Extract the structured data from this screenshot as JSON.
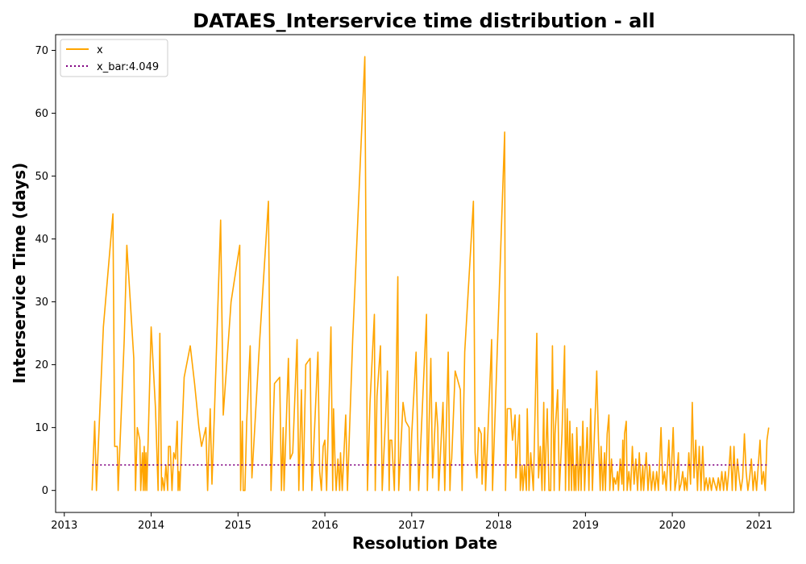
{
  "chart_data": {
    "type": "line",
    "title": "DATAES_Interservice time distribution - all",
    "xlabel": "Resolution Date",
    "ylabel": "Interservice Time (days)",
    "xlim": [
      2012.9,
      2021.4
    ],
    "ylim": [
      -3.5,
      72.5
    ],
    "x_ticks": [
      2013,
      2014,
      2015,
      2016,
      2017,
      2018,
      2019,
      2020,
      2021
    ],
    "x_tick_labels": [
      "2013",
      "2014",
      "2015",
      "2016",
      "2017",
      "2018",
      "2019",
      "2020",
      "2021"
    ],
    "y_ticks": [
      0,
      10,
      20,
      30,
      40,
      50,
      60,
      70
    ],
    "y_tick_labels": [
      "0",
      "10",
      "20",
      "30",
      "40",
      "50",
      "60",
      "70"
    ],
    "grid": false,
    "legend_position": "top-left",
    "series": [
      {
        "name": "x",
        "color": "#ffa500",
        "style": "solid",
        "points": [
          [
            2013.32,
            0
          ],
          [
            2013.35,
            11
          ],
          [
            2013.37,
            0
          ],
          [
            2013.45,
            26
          ],
          [
            2013.56,
            44
          ],
          [
            2013.58,
            7
          ],
          [
            2013.61,
            7
          ],
          [
            2013.62,
            0
          ],
          [
            2013.69,
            24
          ],
          [
            2013.72,
            39
          ],
          [
            2013.8,
            21
          ],
          [
            2013.82,
            0
          ],
          [
            2013.84,
            10
          ],
          [
            2013.87,
            8
          ],
          [
            2013.88,
            0
          ],
          [
            2013.9,
            6
          ],
          [
            2013.91,
            0
          ],
          [
            2013.92,
            7
          ],
          [
            2013.93,
            0
          ],
          [
            2013.94,
            6
          ],
          [
            2013.95,
            0
          ],
          [
            2014.0,
            26
          ],
          [
            2014.05,
            13
          ],
          [
            2014.08,
            0
          ],
          [
            2014.1,
            25
          ],
          [
            2014.12,
            0
          ],
          [
            2014.13,
            2
          ],
          [
            2014.15,
            0
          ],
          [
            2014.17,
            4
          ],
          [
            2014.19,
            0
          ],
          [
            2014.2,
            7
          ],
          [
            2014.22,
            7
          ],
          [
            2014.24,
            0
          ],
          [
            2014.26,
            6
          ],
          [
            2014.28,
            5
          ],
          [
            2014.3,
            11
          ],
          [
            2014.31,
            0
          ],
          [
            2014.32,
            3
          ],
          [
            2014.33,
            0
          ],
          [
            2014.38,
            18
          ],
          [
            2014.45,
            23
          ],
          [
            2014.5,
            17
          ],
          [
            2014.55,
            10
          ],
          [
            2014.58,
            7
          ],
          [
            2014.63,
            10
          ],
          [
            2014.65,
            0
          ],
          [
            2014.68,
            13
          ],
          [
            2014.7,
            1
          ],
          [
            2014.73,
            13
          ],
          [
            2014.8,
            43
          ],
          [
            2014.83,
            12
          ],
          [
            2014.92,
            30
          ],
          [
            2015.02,
            39
          ],
          [
            2015.03,
            0
          ],
          [
            2015.05,
            11
          ],
          [
            2015.06,
            0
          ],
          [
            2015.08,
            0
          ],
          [
            2015.1,
            11
          ],
          [
            2015.14,
            23
          ],
          [
            2015.16,
            2
          ],
          [
            2015.25,
            24
          ],
          [
            2015.3,
            35
          ],
          [
            2015.35,
            46
          ],
          [
            2015.38,
            0
          ],
          [
            2015.42,
            17
          ],
          [
            2015.48,
            18
          ],
          [
            2015.5,
            0
          ],
          [
            2015.52,
            10
          ],
          [
            2015.53,
            0
          ],
          [
            2015.58,
            21
          ],
          [
            2015.6,
            5
          ],
          [
            2015.63,
            6
          ],
          [
            2015.68,
            24
          ],
          [
            2015.7,
            0
          ],
          [
            2015.73,
            16
          ],
          [
            2015.75,
            0
          ],
          [
            2015.78,
            20
          ],
          [
            2015.83,
            21
          ],
          [
            2015.85,
            0
          ],
          [
            2015.92,
            22
          ],
          [
            2015.94,
            3
          ],
          [
            2015.96,
            0
          ],
          [
            2015.98,
            7
          ],
          [
            2016.0,
            8
          ],
          [
            2016.02,
            0
          ],
          [
            2016.07,
            26
          ],
          [
            2016.09,
            0
          ],
          [
            2016.1,
            13
          ],
          [
            2016.12,
            3
          ],
          [
            2016.13,
            0
          ],
          [
            2016.15,
            5
          ],
          [
            2016.17,
            0
          ],
          [
            2016.18,
            6
          ],
          [
            2016.2,
            0
          ],
          [
            2016.24,
            12
          ],
          [
            2016.26,
            0
          ],
          [
            2016.32,
            24
          ],
          [
            2016.46,
            69
          ],
          [
            2016.49,
            0
          ],
          [
            2016.52,
            14
          ],
          [
            2016.57,
            28
          ],
          [
            2016.58,
            0
          ],
          [
            2016.6,
            15
          ],
          [
            2016.64,
            23
          ],
          [
            2016.66,
            0
          ],
          [
            2016.7,
            12
          ],
          [
            2016.72,
            19
          ],
          [
            2016.74,
            0
          ],
          [
            2016.75,
            8
          ],
          [
            2016.77,
            8
          ],
          [
            2016.8,
            0
          ],
          [
            2016.84,
            34
          ],
          [
            2016.85,
            0
          ],
          [
            2016.9,
            14
          ],
          [
            2016.93,
            11
          ],
          [
            2016.97,
            10
          ],
          [
            2016.98,
            0
          ],
          [
            2017.0,
            9
          ],
          [
            2017.05,
            22
          ],
          [
            2017.08,
            0
          ],
          [
            2017.17,
            28
          ],
          [
            2017.18,
            0
          ],
          [
            2017.22,
            21
          ],
          [
            2017.24,
            2
          ],
          [
            2017.28,
            14
          ],
          [
            2017.3,
            10
          ],
          [
            2017.31,
            0
          ],
          [
            2017.36,
            14
          ],
          [
            2017.38,
            0
          ],
          [
            2017.42,
            22
          ],
          [
            2017.44,
            0
          ],
          [
            2017.45,
            4
          ],
          [
            2017.46,
            5
          ],
          [
            2017.5,
            19
          ],
          [
            2017.56,
            16
          ],
          [
            2017.58,
            0
          ],
          [
            2017.61,
            22
          ],
          [
            2017.71,
            46
          ],
          [
            2017.73,
            6
          ],
          [
            2017.75,
            2
          ],
          [
            2017.77,
            10
          ],
          [
            2017.8,
            9
          ],
          [
            2017.81,
            1
          ],
          [
            2017.84,
            10
          ],
          [
            2017.85,
            0
          ],
          [
            2017.92,
            24
          ],
          [
            2017.93,
            0
          ],
          [
            2018.07,
            57
          ],
          [
            2018.08,
            0
          ],
          [
            2018.1,
            13
          ],
          [
            2018.14,
            13
          ],
          [
            2018.16,
            8
          ],
          [
            2018.19,
            12
          ],
          [
            2018.2,
            2
          ],
          [
            2018.24,
            12
          ],
          [
            2018.25,
            0
          ],
          [
            2018.27,
            4
          ],
          [
            2018.28,
            0
          ],
          [
            2018.3,
            4
          ],
          [
            2018.32,
            0
          ],
          [
            2018.33,
            13
          ],
          [
            2018.35,
            0
          ],
          [
            2018.37,
            6
          ],
          [
            2018.4,
            0
          ],
          [
            2018.44,
            25
          ],
          [
            2018.46,
            2
          ],
          [
            2018.48,
            7
          ],
          [
            2018.5,
            0
          ],
          [
            2018.52,
            14
          ],
          [
            2018.53,
            0
          ],
          [
            2018.56,
            13
          ],
          [
            2018.58,
            0
          ],
          [
            2018.6,
            0
          ],
          [
            2018.62,
            23
          ],
          [
            2018.64,
            0
          ],
          [
            2018.65,
            9
          ],
          [
            2018.68,
            16
          ],
          [
            2018.7,
            0
          ],
          [
            2018.73,
            9
          ],
          [
            2018.76,
            23
          ],
          [
            2018.77,
            0
          ],
          [
            2018.79,
            13
          ],
          [
            2018.81,
            0
          ],
          [
            2018.82,
            11
          ],
          [
            2018.84,
            0
          ],
          [
            2018.85,
            9
          ],
          [
            2018.87,
            0
          ],
          [
            2018.88,
            4
          ],
          [
            2018.89,
            0
          ],
          [
            2018.9,
            10
          ],
          [
            2018.92,
            0
          ],
          [
            2018.94,
            7
          ],
          [
            2018.95,
            0
          ],
          [
            2018.97,
            11
          ],
          [
            2018.99,
            0
          ],
          [
            2019.02,
            10
          ],
          [
            2019.04,
            0
          ],
          [
            2019.06,
            13
          ],
          [
            2019.08,
            0
          ],
          [
            2019.13,
            19
          ],
          [
            2019.15,
            8
          ],
          [
            2019.17,
            0
          ],
          [
            2019.18,
            7
          ],
          [
            2019.2,
            0
          ],
          [
            2019.22,
            6
          ],
          [
            2019.23,
            0
          ],
          [
            2019.25,
            9
          ],
          [
            2019.27,
            12
          ],
          [
            2019.28,
            0
          ],
          [
            2019.3,
            5
          ],
          [
            2019.32,
            0
          ],
          [
            2019.33,
            2
          ],
          [
            2019.35,
            1
          ],
          [
            2019.37,
            3
          ],
          [
            2019.38,
            0
          ],
          [
            2019.4,
            5
          ],
          [
            2019.42,
            1
          ],
          [
            2019.43,
            8
          ],
          [
            2019.44,
            0
          ],
          [
            2019.45,
            9
          ],
          [
            2019.47,
            11
          ],
          [
            2019.48,
            0
          ],
          [
            2019.5,
            3
          ],
          [
            2019.52,
            0
          ],
          [
            2019.54,
            7
          ],
          [
            2019.56,
            1
          ],
          [
            2019.58,
            5
          ],
          [
            2019.6,
            0
          ],
          [
            2019.62,
            6
          ],
          [
            2019.64,
            0
          ],
          [
            2019.66,
            4
          ],
          [
            2019.67,
            0
          ],
          [
            2019.7,
            6
          ],
          [
            2019.72,
            0
          ],
          [
            2019.74,
            4
          ],
          [
            2019.76,
            0
          ],
          [
            2019.78,
            3
          ],
          [
            2019.8,
            0
          ],
          [
            2019.82,
            3
          ],
          [
            2019.84,
            0
          ],
          [
            2019.87,
            10
          ],
          [
            2019.89,
            1
          ],
          [
            2019.91,
            3
          ],
          [
            2019.93,
            0
          ],
          [
            2019.96,
            8
          ],
          [
            2019.98,
            0
          ],
          [
            2020.01,
            10
          ],
          [
            2020.03,
            0
          ],
          [
            2020.05,
            2
          ],
          [
            2020.07,
            6
          ],
          [
            2020.08,
            0
          ],
          [
            2020.1,
            1
          ],
          [
            2020.12,
            3
          ],
          [
            2020.14,
            0
          ],
          [
            2020.15,
            2
          ],
          [
            2020.17,
            0
          ],
          [
            2020.19,
            6
          ],
          [
            2020.21,
            1
          ],
          [
            2020.23,
            14
          ],
          [
            2020.25,
            2
          ],
          [
            2020.27,
            8
          ],
          [
            2020.29,
            0
          ],
          [
            2020.31,
            7
          ],
          [
            2020.33,
            0
          ],
          [
            2020.35,
            7
          ],
          [
            2020.37,
            0
          ],
          [
            2020.39,
            2
          ],
          [
            2020.41,
            0
          ],
          [
            2020.43,
            2
          ],
          [
            2020.45,
            0
          ],
          [
            2020.47,
            2
          ],
          [
            2020.49,
            1
          ],
          [
            2020.51,
            0
          ],
          [
            2020.53,
            2
          ],
          [
            2020.55,
            0
          ],
          [
            2020.57,
            3
          ],
          [
            2020.59,
            0
          ],
          [
            2020.61,
            3
          ],
          [
            2020.63,
            0
          ],
          [
            2020.65,
            3
          ],
          [
            2020.67,
            7
          ],
          [
            2020.69,
            0
          ],
          [
            2020.71,
            7
          ],
          [
            2020.73,
            0
          ],
          [
            2020.75,
            5
          ],
          [
            2020.77,
            2
          ],
          [
            2020.79,
            0
          ],
          [
            2020.81,
            2
          ],
          [
            2020.83,
            9
          ],
          [
            2020.85,
            3
          ],
          [
            2020.87,
            0
          ],
          [
            2020.89,
            2
          ],
          [
            2020.91,
            5
          ],
          [
            2020.93,
            0
          ],
          [
            2020.95,
            3
          ],
          [
            2020.97,
            0
          ],
          [
            2020.99,
            4
          ],
          [
            2021.01,
            8
          ],
          [
            2021.03,
            1
          ],
          [
            2021.05,
            3
          ],
          [
            2021.07,
            0
          ],
          [
            2021.09,
            8
          ],
          [
            2021.11,
            10
          ]
        ]
      },
      {
        "name": "x_bar:4.049",
        "color": "#800080",
        "style": "dotted",
        "points": [
          [
            2013.32,
            4.049
          ],
          [
            2021.11,
            4.049
          ]
        ]
      }
    ]
  }
}
